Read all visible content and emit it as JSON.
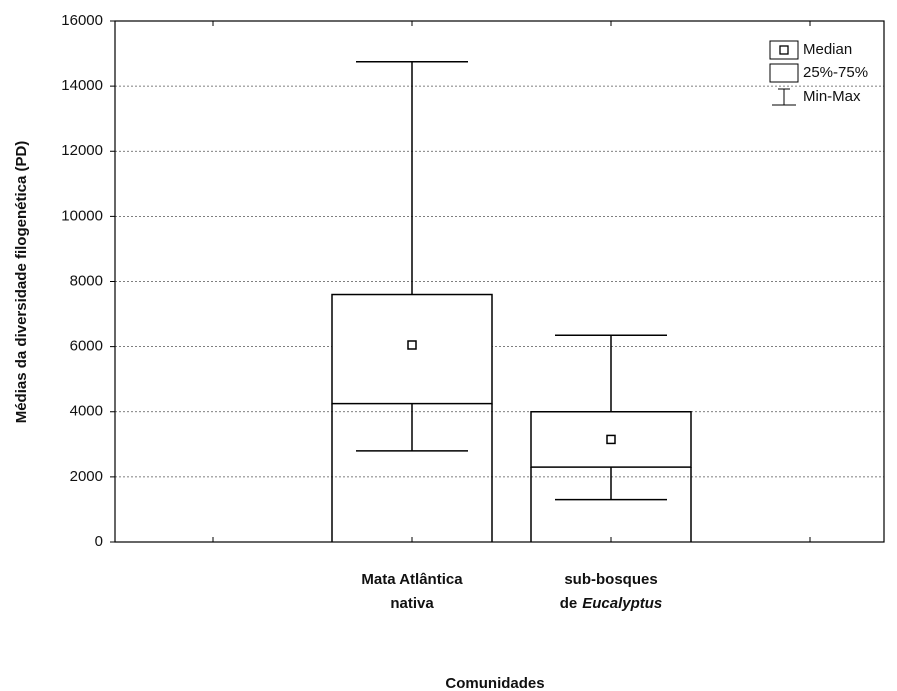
{
  "chart_data": {
    "type": "box",
    "ylabel": "Médias da diversidade filogenética (PD)",
    "xlabel": "Comunidades",
    "categories": [
      [
        [
          "Mata Atlântica"
        ],
        [
          "nativa"
        ]
      ],
      [
        [
          "sub-bosques"
        ],
        [
          "de",
          "Eucalyptus"
        ]
      ]
    ],
    "boxes": [
      {
        "min": 2800,
        "q1": 4250,
        "median": 6050,
        "q3": 7600,
        "max": 14750
      },
      {
        "min": 1300,
        "q1": 2300,
        "median": 3150,
        "q3": 4000,
        "max": 6350
      }
    ],
    "legend": [
      "Median",
      "25%-75%",
      "Min-Max"
    ],
    "color": "#000000",
    "ylim": [
      0,
      16000
    ],
    "yticks": [
      0,
      2000,
      4000,
      6000,
      8000,
      10000,
      12000,
      14000,
      16000
    ],
    "grid": true
  }
}
